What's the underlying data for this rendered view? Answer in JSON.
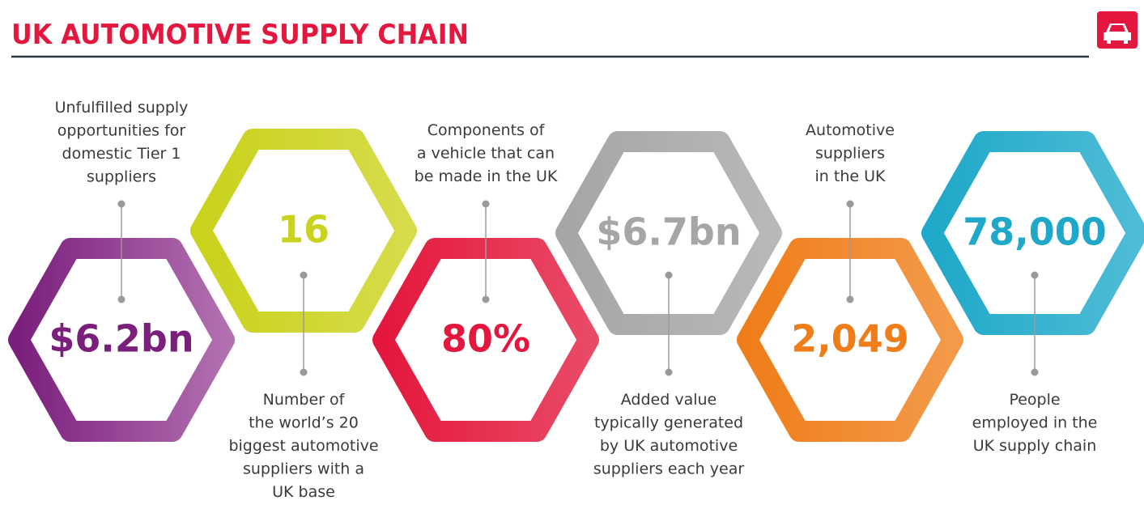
{
  "header": {
    "title": "UK AUTOMOTIVE SUPPLY CHAIN"
  },
  "stats": [
    {
      "value": "$6.2bn",
      "description": [
        "Unfulfilled supply",
        "opportunities for",
        "domestic Tier 1",
        "suppliers"
      ]
    },
    {
      "value": "16",
      "description": [
        "Number of",
        "the world’s 20",
        "biggest automotive",
        "suppliers with a",
        "UK base"
      ]
    },
    {
      "value": "80%",
      "description": [
        "Components of",
        "a vehicle that can",
        "be made in the UK"
      ]
    },
    {
      "value": "$6.7bn",
      "description": [
        "Added value",
        "typically generated",
        "by UK automotive",
        "suppliers each year"
      ]
    },
    {
      "value": "2,049",
      "description": [
        "Automotive",
        "suppliers",
        "in the UK"
      ]
    },
    {
      "value": "78,000",
      "description": [
        "People",
        "employed in the",
        "UK supply chain"
      ]
    }
  ]
}
